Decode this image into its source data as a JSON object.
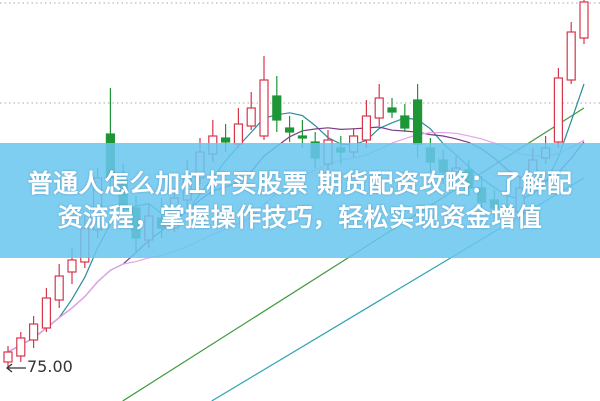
{
  "title_lines": [
    "普通人怎么加杠杆买股票 期货配资攻略：了解配",
    "资流程，掌握操作技巧，轻松实现资金增值"
  ],
  "chart_data": {
    "type": "candlestick",
    "price_marker": "75.00",
    "price_marker_value": 75.0,
    "grid": "dotted horizontal",
    "ylim": [
      74.0,
      93.4
    ],
    "up_color": "#d7354a",
    "down_color": "#1e9638",
    "candles_ohlc": [
      [
        75.3,
        75.8,
        76.1,
        75.0
      ],
      [
        75.6,
        76.5,
        76.8,
        75.3
      ],
      [
        76.4,
        77.2,
        77.6,
        76.0
      ],
      [
        77.0,
        78.5,
        79.0,
        76.8
      ],
      [
        78.4,
        79.6,
        80.2,
        78.0
      ],
      [
        79.8,
        80.4,
        81.0,
        79.2
      ],
      [
        80.3,
        82.0,
        82.6,
        80.0
      ],
      [
        81.9,
        84.5,
        85.0,
        81.5
      ],
      [
        86.7,
        84.5,
        89.0,
        84.0
      ],
      [
        84.4,
        83.0,
        85.2,
        82.5
      ],
      [
        83.0,
        81.5,
        83.6,
        80.8
      ],
      [
        81.4,
        82.6,
        83.2,
        81.0
      ],
      [
        82.5,
        82.0,
        83.5,
        81.5
      ],
      [
        82.0,
        83.5,
        84.0,
        81.8
      ],
      [
        83.4,
        84.6,
        85.4,
        83.0
      ],
      [
        84.5,
        85.8,
        86.5,
        84.2
      ],
      [
        85.7,
        86.6,
        87.4,
        85.3
      ],
      [
        86.5,
        86.3,
        87.2,
        85.8
      ],
      [
        86.2,
        87.2,
        88.0,
        86.0
      ],
      [
        87.1,
        88.0,
        88.8,
        86.9
      ],
      [
        86.6,
        89.4,
        90.6,
        86.4
      ],
      [
        88.6,
        87.4,
        89.6,
        86.8
      ],
      [
        87.0,
        86.8,
        87.6,
        86.3
      ],
      [
        86.6,
        86.5,
        87.4,
        86.0
      ],
      [
        86.3,
        85.5,
        86.8,
        85.0
      ],
      [
        85.2,
        86.4,
        86.9,
        84.8
      ],
      [
        86.0,
        85.8,
        86.6,
        85.2
      ],
      [
        85.8,
        86.6,
        87.0,
        85.5
      ],
      [
        86.4,
        87.6,
        88.4,
        86.0
      ],
      [
        87.5,
        88.5,
        89.2,
        87.1
      ],
      [
        88.0,
        87.8,
        88.5,
        87.5
      ],
      [
        87.6,
        87.0,
        88.2,
        86.8
      ],
      [
        88.4,
        86.2,
        89.2,
        85.5
      ],
      [
        86.0,
        85.3,
        86.5,
        84.8
      ],
      [
        85.4,
        84.8,
        85.9,
        84.2
      ],
      [
        84.8,
        85.0,
        85.6,
        84.0
      ],
      [
        84.9,
        84.0,
        85.4,
        83.6
      ],
      [
        84.0,
        83.3,
        84.6,
        82.8
      ],
      [
        83.4,
        83.0,
        83.9,
        82.5
      ],
      [
        83.0,
        82.8,
        83.6,
        82.2
      ],
      [
        82.8,
        84.0,
        84.5,
        82.4
      ],
      [
        84.2,
        85.4,
        86.0,
        84.0
      ],
      [
        85.5,
        86.0,
        86.6,
        85.2
      ],
      [
        86.3,
        89.5,
        90.0,
        86.0
      ],
      [
        89.4,
        91.8,
        92.3,
        89.2
      ],
      [
        91.5,
        93.3,
        93.5,
        91.2
      ]
    ],
    "moving_averages": [
      {
        "period": 5,
        "color": "#2b8c9c"
      },
      {
        "period": 10,
        "color": "#7a3b8c"
      },
      {
        "period": 20,
        "color": "#e2a4ea"
      }
    ],
    "trend_lines": [
      {
        "color": "#3f9a3f",
        "from": 70.5,
        "to": 88.0
      },
      {
        "color": "#2fa2b4",
        "from": 68.0,
        "to": 84.5
      }
    ]
  }
}
